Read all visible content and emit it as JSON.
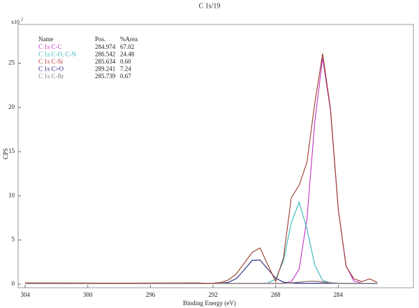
{
  "chart_data": {
    "type": "line",
    "title": "C 1s/19",
    "xlabel": "Binding Energy (eV)",
    "ylabel": "CPS",
    "scale_base": "x10",
    "scale_exp": "2",
    "legend_headers": [
      "Name",
      "Pos.",
      "%Area"
    ],
    "x": [
      304,
      298,
      293,
      292.5,
      292,
      291.5,
      291,
      290.5,
      290,
      289.5,
      289,
      288.5,
      288,
      287.5,
      287,
      286.5,
      286,
      285.5,
      285,
      284.5,
      284,
      283.5,
      283,
      282.5,
      282,
      281.5
    ],
    "xlim": [
      304.45,
      279.2
    ],
    "xticks": [
      304,
      300,
      296,
      292,
      288,
      284
    ],
    "ylim": [
      -0.4,
      29.4
    ],
    "yticks": [
      0,
      5,
      10,
      15,
      20,
      25
    ],
    "series": [
      {
        "name": "C 1s C-C",
        "pos": "284.974",
        "area": "67.02",
        "color": "#c030c0",
        "values": [
          0.1,
          0.1,
          0.1,
          0.1,
          0.1,
          0.1,
          0.1,
          0.1,
          0.1,
          0.1,
          0.1,
          0.1,
          0.1,
          0.11,
          0.29,
          1.7,
          7.4,
          18.4,
          25.6,
          19.7,
          8.5,
          2.07,
          0.36,
          0.12,
          0.1,
          0.1
        ]
      },
      {
        "name": "C 1s C-O, C-N",
        "pos": "286.542",
        "area": "24.48",
        "color": "#30b8b8",
        "values": [
          0.1,
          0.1,
          0.1,
          0.1,
          0.1,
          0.1,
          0.1,
          0.1,
          0.1,
          0.1,
          0.1,
          0.14,
          0.58,
          2.66,
          6.97,
          9.29,
          6.24,
          2.15,
          0.44,
          0.13,
          0.1,
          0.1,
          0.1,
          0.1,
          0.1,
          0.1
        ]
      },
      {
        "name": "C 1s C-Si",
        "pos": "285.634",
        "area": "0.60",
        "color": "#c03030",
        "values": [
          0.1,
          0.1,
          0.1,
          0.1,
          0.1,
          0.1,
          0.1,
          0.1,
          0.1,
          0.1,
          0.1,
          0.1,
          0.1,
          0.1,
          0.14,
          0.22,
          0.32,
          0.35,
          0.27,
          0.17,
          0.12,
          0.1,
          0.1,
          0.1,
          0.1,
          0.1
        ]
      },
      {
        "name": "C 1s C=O",
        "pos": "289.241",
        "area": "7.24",
        "color": "#202080",
        "values": [
          0.1,
          0.1,
          0.1,
          0.1,
          0.1,
          0.12,
          0.22,
          0.65,
          1.65,
          2.71,
          2.74,
          1.7,
          0.68,
          0.23,
          0.12,
          0.1,
          0.1,
          0.1,
          0.1,
          0.1,
          0.1,
          0.1,
          0.1,
          0.1,
          0.1,
          0.1
        ]
      },
      {
        "name": "C 1s C-Br",
        "pos": "285.739",
        "area": "0.67",
        "color": "#808080",
        "values": [
          0.1,
          0.1,
          0.1,
          0.1,
          0.1,
          0.1,
          0.1,
          0.1,
          0.1,
          0.1,
          0.1,
          0.1,
          0.1,
          0.1,
          0.15,
          0.24,
          0.33,
          0.34,
          0.24,
          0.15,
          0.11,
          0.1,
          0.1,
          0.1,
          0.1,
          0.1
        ]
      },
      {
        "color": "#9a3a2a",
        "values": [
          0.15,
          0.12,
          0.15,
          0.1,
          0.12,
          0.2,
          0.5,
          1.2,
          2.4,
          3.6,
          4.1,
          2.2,
          0.3,
          3.0,
          9.8,
          11.2,
          13.8,
          20.5,
          26.1,
          19.9,
          8.5,
          2.0,
          0.6,
          0.3,
          0.6,
          0.2
        ]
      }
    ]
  }
}
